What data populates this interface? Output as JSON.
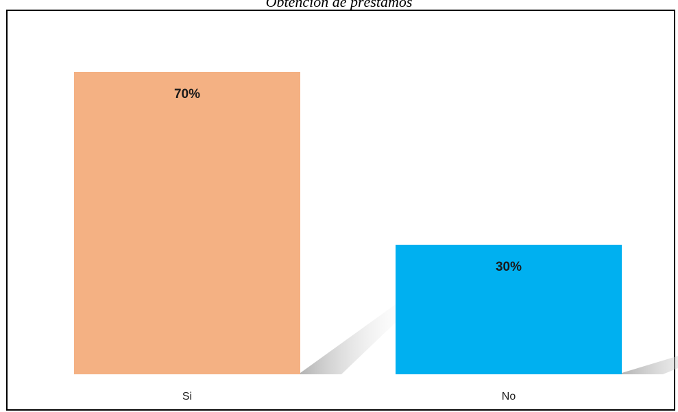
{
  "chart_data": {
    "type": "bar",
    "title": "Obtención de préstamos",
    "categories": [
      "Si",
      "No"
    ],
    "values": [
      70,
      30
    ],
    "data_labels": [
      "70%",
      "30%"
    ],
    "ylim": [
      0,
      70
    ],
    "grid": false,
    "legend": "none",
    "colors": [
      "#F4B183",
      "#00B0F0"
    ],
    "shadow_color": "#bfbfbf"
  }
}
